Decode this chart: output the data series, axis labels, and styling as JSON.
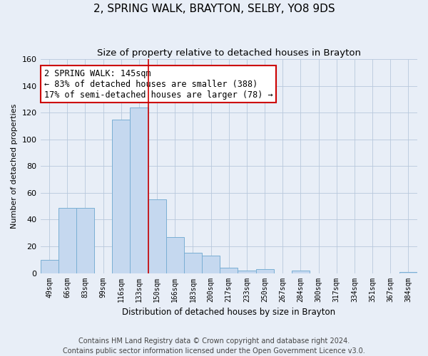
{
  "title": "2, SPRING WALK, BRAYTON, SELBY, YO8 9DS",
  "subtitle": "Size of property relative to detached houses in Brayton",
  "xlabel": "Distribution of detached houses by size in Brayton",
  "ylabel": "Number of detached properties",
  "bar_labels": [
    "49sqm",
    "66sqm",
    "83sqm",
    "99sqm",
    "116sqm",
    "133sqm",
    "150sqm",
    "166sqm",
    "183sqm",
    "200sqm",
    "217sqm",
    "233sqm",
    "250sqm",
    "267sqm",
    "284sqm",
    "300sqm",
    "317sqm",
    "334sqm",
    "351sqm",
    "367sqm",
    "384sqm"
  ],
  "bar_heights": [
    10,
    49,
    49,
    0,
    115,
    124,
    55,
    27,
    15,
    13,
    4,
    2,
    3,
    0,
    2,
    0,
    0,
    0,
    0,
    0,
    1
  ],
  "bar_color": "#c5d8ef",
  "bar_edge_color": "#7aafd4",
  "property_line_x": 5.5,
  "property_line_color": "#cc0000",
  "annotation_text": "2 SPRING WALK: 145sqm\n← 83% of detached houses are smaller (388)\n17% of semi-detached houses are larger (78) →",
  "annotation_box_color": "#ffffff",
  "annotation_box_edge_color": "#cc0000",
  "ylim": [
    0,
    160
  ],
  "yticks": [
    0,
    20,
    40,
    60,
    80,
    100,
    120,
    140,
    160
  ],
  "footer_text": "Contains HM Land Registry data © Crown copyright and database right 2024.\nContains public sector information licensed under the Open Government Licence v3.0.",
  "background_color": "#e8eef7",
  "plot_background_color": "#e8eef7",
  "title_fontsize": 11,
  "subtitle_fontsize": 9.5,
  "annotation_fontsize": 8.5,
  "footer_fontsize": 7,
  "ylabel_fontsize": 8,
  "xlabel_fontsize": 8.5
}
